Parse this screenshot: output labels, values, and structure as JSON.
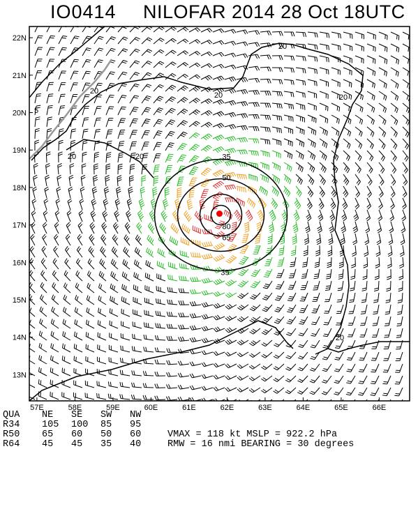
{
  "header": {
    "storm_id": "IO0414",
    "storm_title": "NILOFAR 2014 28 Oct 18UTC"
  },
  "map": {
    "lat_labels": [
      "22N",
      "21N",
      "20N",
      "19N",
      "18N",
      "17N",
      "16N",
      "15N",
      "14N",
      "13N"
    ],
    "lon_labels": [
      "57E",
      "58E",
      "59E",
      "60E",
      "61E",
      "62E",
      "63E",
      "64E",
      "65E",
      "66E"
    ],
    "lat_range": [
      12.3,
      22.3
    ],
    "lon_range": [
      56.8,
      66.8
    ],
    "center": {
      "lon": 61.8,
      "lat": 17.3
    },
    "isotach_labels": [
      "35",
      "50",
      "65",
      "80",
      "35"
    ],
    "contour_labels_20": [
      "20",
      "20",
      "20",
      "20",
      "20",
      "20",
      "20"
    ],
    "contour_label_5": "5",
    "colors": {
      "coast": "#000000",
      "border": "#999999",
      "barb_weak": "#000000",
      "barb_gale": "#22bb22",
      "barb_storm": "#f0a020",
      "barb_hurricane": "#e03030",
      "center_marker": "#ee0000"
    }
  },
  "stats": {
    "header": [
      "QUA",
      "NE",
      "SE",
      "SW",
      "NW"
    ],
    "rows": [
      [
        "R34",
        "105",
        "100",
        "85",
        "95"
      ],
      [
        "R50",
        "65",
        "60",
        "50",
        "60"
      ],
      [
        "R64",
        "45",
        "45",
        "35",
        "40"
      ]
    ],
    "summary": [
      "VMAX = 118 kt MSLP = 922.2 hPa",
      "RMW = 16 nmi BEARING = 30 degrees"
    ]
  }
}
